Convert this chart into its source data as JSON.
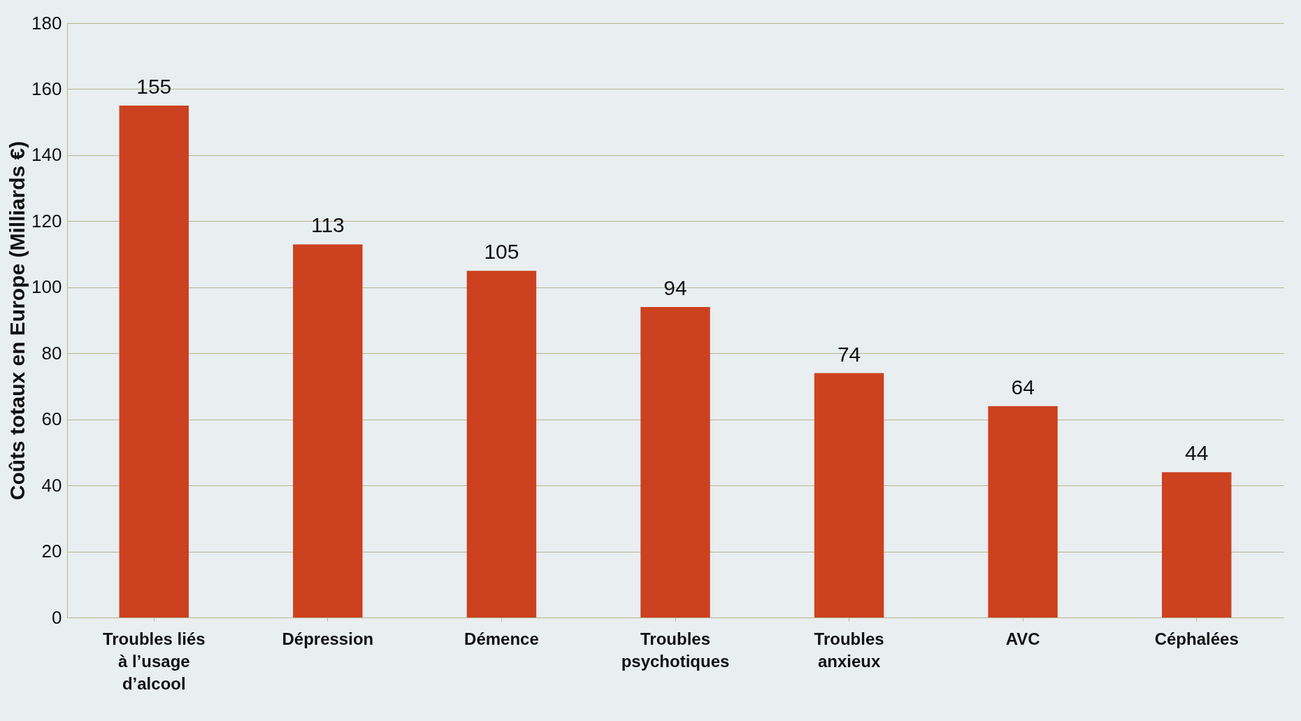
{
  "chart_data": {
    "type": "bar",
    "ylabel": "Coûts totaux en Europe (Milliards €)",
    "categories": [
      "Troubles liés à l’usage d’alcool",
      "Dépression",
      "Démence",
      "Troubles psychotiques",
      "Troubles anxieux",
      "AVC",
      "Céphalées"
    ],
    "values": [
      155,
      113,
      105,
      94,
      74,
      64,
      44
    ],
    "color": "#cc411f",
    "ylim": [
      0,
      180
    ],
    "yticks": [
      0,
      20,
      40,
      60,
      80,
      100,
      120,
      140,
      160,
      180
    ],
    "grid": "y",
    "data_labels": true
  }
}
